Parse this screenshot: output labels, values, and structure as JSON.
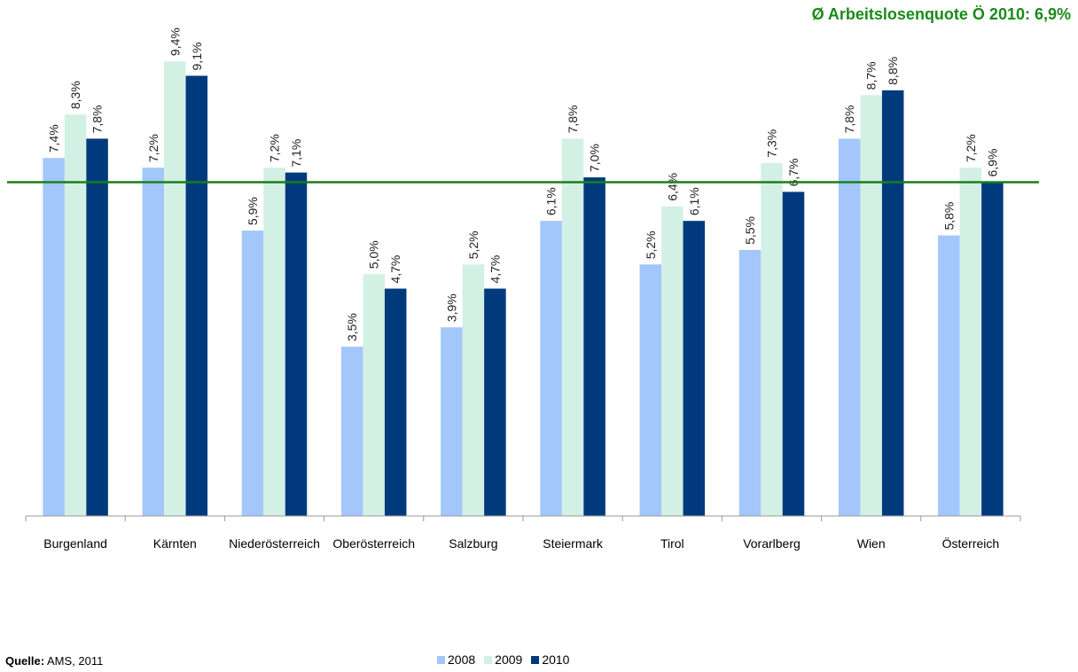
{
  "chart_data": {
    "type": "bar",
    "categories": [
      "Burgenland",
      "Kärnten",
      "Niederösterreich",
      "Oberösterreich",
      "Salzburg",
      "Steiermark",
      "Tirol",
      "Vorarlberg",
      "Wien",
      "Österreich"
    ],
    "series": [
      {
        "name": "2008",
        "color": "#a3c6fb",
        "values": [
          7.4,
          7.2,
          5.9,
          3.5,
          3.9,
          6.1,
          5.2,
          5.5,
          7.8,
          5.8
        ],
        "labels": [
          "7,4%",
          "7,2%",
          "5,9%",
          "3,5%",
          "3,9%",
          "6,1%",
          "5,2%",
          "5,5%",
          "7,8%",
          "5,8%"
        ]
      },
      {
        "name": "2009",
        "color": "#d3f0e5",
        "values": [
          8.3,
          9.4,
          7.2,
          5.0,
          5.2,
          7.8,
          6.4,
          7.3,
          8.7,
          7.2
        ],
        "labels": [
          "8,3%",
          "9,4%",
          "7,2%",
          "5,0%",
          "5,2%",
          "7,8%",
          "6,4%",
          "7,3%",
          "8,7%",
          "7,2%"
        ]
      },
      {
        "name": "2010",
        "color": "#003a7d",
        "values": [
          7.8,
          9.1,
          7.1,
          4.7,
          4.7,
          7.0,
          6.1,
          6.7,
          8.8,
          6.9
        ],
        "labels": [
          "7,8%",
          "9,1%",
          "7,1%",
          "4,7%",
          "4,7%",
          "7,0%",
          "6,1%",
          "6,7%",
          "8,8%",
          "6,9%"
        ]
      }
    ],
    "reference_line": {
      "value": 6.9,
      "color": "#1a7f1a"
    },
    "annotation": "Ø Arbeitslosenquote Ö 2010: 6,9%",
    "annotation_color": "#1a8a1a",
    "ylim": [
      0,
      10
    ],
    "grid": false,
    "legend_position": "bottom"
  },
  "source": {
    "label": "Quelle:",
    "text": " AMS, 2011"
  }
}
